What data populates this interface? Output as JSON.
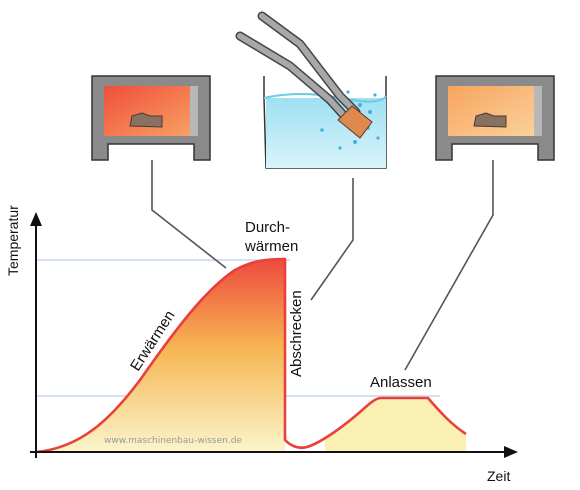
{
  "axes": {
    "y_label": "Temperatur",
    "x_label": "Zeit"
  },
  "labels": {
    "heating": "Erwärmen",
    "soaking_line1": "Durch-",
    "soaking_line2": "wärmen",
    "quenching": "Abschrecken",
    "tempering": "Anlassen"
  },
  "watermark": "www.maschinenbau-wissen.de",
  "colors": {
    "curve": "#e8403a",
    "fill_top": "#ee4b3e",
    "fill_bottom": "#fbf7cf",
    "guide_lines": "#c5d6ef",
    "furnace_wall": "#8a8a8a",
    "furnace_hot_inside": "#f16a4a",
    "furnace_warm_inside": "#f8b26a",
    "water": "#bfe9f5",
    "workpiece": "#8a7060",
    "tongs": "#9a9a9a"
  },
  "stages_shown": [
    {
      "icon": "furnace-hot-icon",
      "stage": "heating/soaking"
    },
    {
      "icon": "quench-bath-icon",
      "stage": "quenching"
    },
    {
      "icon": "furnace-warm-icon",
      "stage": "tempering"
    }
  ]
}
